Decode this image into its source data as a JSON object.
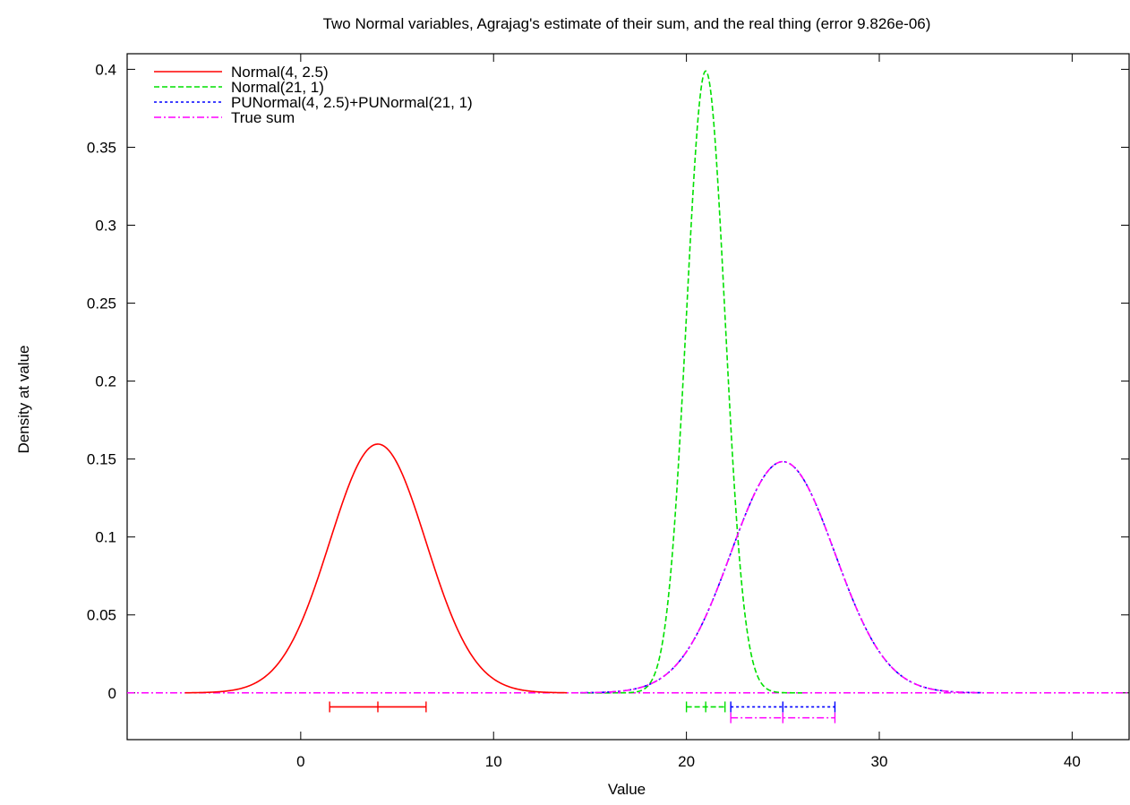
{
  "chart_data": {
    "type": "line",
    "title": "Two Normal variables, Agrajag's estimate of their sum, and the real thing (error 9.826e-06)",
    "xlabel": "Value",
    "ylabel": "Density at value",
    "xlim": [
      -9,
      43
    ],
    "ylim": [
      -0.03,
      0.41
    ],
    "x_ticks": [
      0,
      10,
      20,
      30,
      40
    ],
    "y_ticks": [
      0,
      0.05,
      0.1,
      0.15,
      0.2,
      0.25,
      0.3,
      0.35,
      0.4
    ],
    "y_tick_labels": [
      "0",
      "0.05",
      "0.1",
      "0.15",
      "0.2",
      "0.25",
      "0.3",
      "0.35",
      "0.4"
    ],
    "grid": false,
    "legend_position": "top-left",
    "series": [
      {
        "name": "Normal(4, 2.5)",
        "color": "#ff0000",
        "dash": "solid",
        "distribution": {
          "mean": 4,
          "sd": 2.5
        },
        "x_range": [
          -6,
          13.8
        ],
        "interval": {
          "low": 1.5,
          "mid": 4,
          "high": 6.5,
          "y": -0.009
        }
      },
      {
        "name": "Normal(21, 1)",
        "color": "#00e000",
        "dash": "dashed",
        "distribution": {
          "mean": 21,
          "sd": 1
        },
        "x_range": [
          14.5,
          26
        ],
        "interval": {
          "low": 20,
          "mid": 21,
          "high": 22,
          "y": -0.009
        }
      },
      {
        "name": "PUNormal(4, 2.5)+PUNormal(21, 1)",
        "color": "#0000ff",
        "dash": "dotted",
        "distribution": {
          "mean": 25,
          "sd": 2.69
        },
        "x_range": [
          14.5,
          35.3
        ],
        "interval": {
          "low": 22.3,
          "mid": 25,
          "high": 27.7,
          "y": -0.009
        }
      },
      {
        "name": "True sum",
        "color": "#ff00ff",
        "dash": "dash-dot",
        "distribution": {
          "mean": 25,
          "sd": 2.69
        },
        "x_range": [
          14.5,
          35.3
        ],
        "interval": {
          "low": 22.3,
          "mid": 25,
          "high": 27.7,
          "y": -0.016
        }
      }
    ],
    "zero_line": {
      "color": "#ff00ff",
      "dash": "dash-dot",
      "x_range": [
        -9,
        43
      ]
    }
  }
}
